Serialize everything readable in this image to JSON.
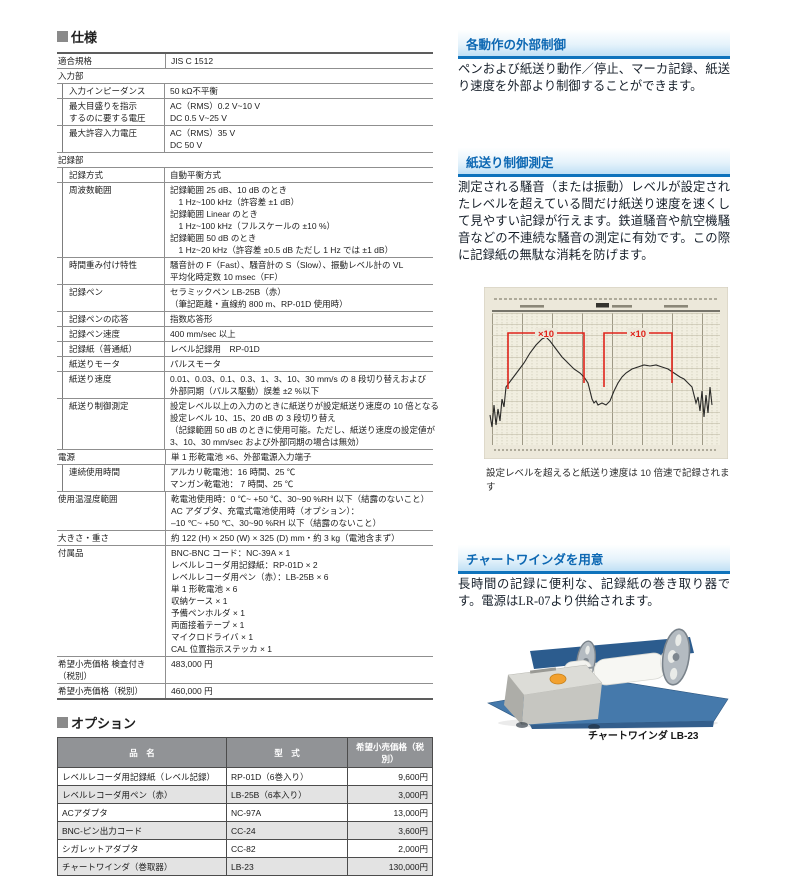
{
  "left": {
    "spec_title": "仕様",
    "option_title": "オプション"
  },
  "spec_table": {
    "rows": [
      {
        "label": "適合規格",
        "indent": 0,
        "section": false,
        "values": [
          "JIS C 1512"
        ]
      },
      {
        "label": "入力部",
        "indent": 0,
        "section": true,
        "values": []
      },
      {
        "label": "入力インピーダンス",
        "indent": 1,
        "section": false,
        "values": [
          "50 kΩ不平衡"
        ]
      },
      {
        "label": "最大目盛りを指示\nするのに要する電圧",
        "indent": 1,
        "section": false,
        "values": [
          "AC（RMS）0.2 V~10 V",
          "DC 0.5 V~25 V"
        ]
      },
      {
        "label": "最大許容入力電圧",
        "indent": 1,
        "section": false,
        "values": [
          "AC（RMS）35 V",
          "DC 50 V"
        ]
      },
      {
        "label": "記録部",
        "indent": 0,
        "section": true,
        "values": []
      },
      {
        "label": "記録方式",
        "indent": 1,
        "section": false,
        "values": [
          "自動平衡方式"
        ]
      },
      {
        "label": "周波数範囲",
        "indent": 1,
        "section": false,
        "values": [
          "記録範囲 25 dB、10 dB のとき",
          "　1 Hz~100 kHz（許容差 ±1 dB）",
          "記録範囲 Linear のとき",
          "　1 Hz~100 kHz（フルスケールの ±10 %）",
          "記録範囲 50 dB のとき",
          "　1 Hz~20 kHz（許容差 ±0.5 dB ただし 1 Hz では ±1 dB）"
        ]
      },
      {
        "label": "時間重み付け特性",
        "indent": 1,
        "section": false,
        "values": [
          "騒音計の F（Fast）、騒音計の S（Slow）、振動レベル計の VL",
          "平均化時定数 10 msec（FF）"
        ]
      },
      {
        "label": "記録ペン",
        "indent": 1,
        "section": false,
        "values": [
          "セラミックペン LB-25B（赤）",
          "（筆記距離・直線約 800 m、RP-01D 使用時）"
        ]
      },
      {
        "label": "記録ペンの応答",
        "indent": 1,
        "section": false,
        "values": [
          "指数応答形"
        ]
      },
      {
        "label": "記録ペン速度",
        "indent": 1,
        "section": false,
        "values": [
          "400 mm/sec 以上"
        ]
      },
      {
        "label": "記録紙（普通紙）",
        "indent": 1,
        "section": false,
        "values": [
          "レベル記録用　RP-01D"
        ]
      },
      {
        "label": "紙送りモータ",
        "indent": 1,
        "section": false,
        "values": [
          "パルスモータ"
        ]
      },
      {
        "label": "紙送り速度",
        "indent": 1,
        "section": false,
        "values": [
          "0.01、0.03、0.1、0.3、1、3、10、30 mm/s の 8 段切り替えおよび",
          "外部同期（パルス駆動）誤差 ±2 %以下"
        ]
      },
      {
        "label": "紙送り制御測定",
        "indent": 1,
        "section": false,
        "values": [
          "設定レベル以上の入力のときに紙送りが設定紙送り速度の 10 倍となる",
          "設定レベル 10、15、20 dB の 3 段切り替え",
          "（記録範囲 50 dB のときに使用可能。ただし、紙送り速度の設定値が",
          "3、10、30 mm/sec および外部同期の場合は無効）"
        ]
      },
      {
        "label": "電源",
        "indent": 0,
        "section": true,
        "values": [
          "単 1 形乾電池 ×6、外部電源入力端子"
        ]
      },
      {
        "label": "連続使用時間",
        "indent": 1,
        "section": false,
        "values": [
          "アルカリ乾電池：16 時間、25 ℃",
          "マンガン乾電池： 7 時間、25 ℃"
        ]
      },
      {
        "label": "使用温湿度範囲",
        "indent": 0,
        "section": true,
        "values": [
          "乾電池使用時：0 ℃~ +50 ℃、30~90 %RH 以下（結露のないこと）",
          "AC アダプタ、充電式電池使用時（オプション）：",
          "–10 ℃~ +50 ℃、30~90 %RH 以下（結露のないこと）"
        ]
      },
      {
        "label": "大きさ・重さ",
        "indent": 0,
        "section": true,
        "values": [
          "約 122 (H) × 250 (W) × 325 (D) mm・約 3 kg（電池含まず）"
        ]
      },
      {
        "label": "付属品",
        "indent": 0,
        "section": true,
        "values": [
          "BNC-BNC コード：NC-39A × 1",
          "レベルレコーダ用記録紙：RP-01D × 2",
          "レベルレコーダ用ペン（赤）：LB-25B × 6",
          "単 1 形乾電池 × 6",
          "収納ケース × 1",
          "予備ペンホルダ × 1",
          "両面接着テープ × 1",
          "マイクロドライバ × 1",
          "CAL 位置指示ステッカ × 1"
        ]
      },
      {
        "label": "希望小売価格 検査付き（税別）",
        "indent": 0,
        "section": true,
        "values": [
          "483,000 円"
        ]
      },
      {
        "label": "希望小売価格（税別）",
        "indent": 0,
        "section": false,
        "values": [
          "460,000 円"
        ]
      }
    ]
  },
  "option_table": {
    "headers": [
      "品　名",
      "型　式",
      "希望小売価格（税別）"
    ],
    "rows": [
      [
        "レベルレコーダ用記録紙（レベル記録）",
        "RP-01D（6巻入り）",
        "9,600円"
      ],
      [
        "レベルレコーダ用ペン（赤）",
        "LB-25B（6本入り）",
        "3,000円"
      ],
      [
        "ACアダプタ",
        "NC-97A",
        "13,000円"
      ],
      [
        "BNC-ピン出力コード",
        "CC-24",
        "3,600円"
      ],
      [
        "シガレットアダプタ",
        "CC-82",
        "2,000円"
      ],
      [
        "チャートワインダ（巻取器）",
        "LB-23",
        "130,000円"
      ]
    ]
  },
  "right": {
    "sections": [
      {
        "heading": "各動作の外部制御",
        "body": "ペンおよび紙送り動作／停止、マーカ記録、紙送り速度を外部より制御することができます。"
      },
      {
        "heading": "紙送り制御測定",
        "body": "測定される騒音（または振動）レベルが設定されたレベルを超えている間だけ紙送り速度を速くして見やすい記録が行えます。鉄道騒音や航空機騒音などの不連続な騒音の測定に有効です。この際に記録紙の無駄な消耗を防げます。",
        "x10": "×10",
        "figure_caption": "設定レベルを超えると紙送り速度は 10 倍速で記録されます"
      },
      {
        "heading": "チャートワインダを用意",
        "body": "長時間の記録に便利な、記録紙の巻き取り器です。電源はLR-07より供給されます。",
        "photo_caption": "チャートワインダ LB-23"
      }
    ]
  },
  "colors": {
    "accent_blue": "#0d68b3",
    "heading_underline_blue": "#0f73bc",
    "annotation_red": "#df231a",
    "option_header_gray": "#919396",
    "chart_paper_cream": "#ece8da"
  }
}
